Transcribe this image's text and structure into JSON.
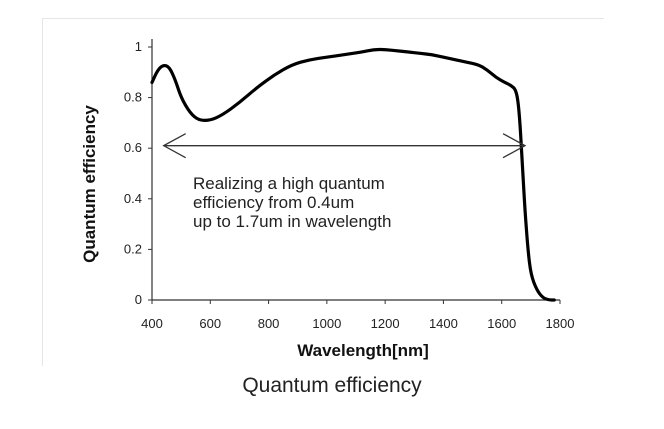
{
  "caption": "Quantum efficiency",
  "chart_data": {
    "type": "line",
    "xlabel": "Wavelength[nm]",
    "ylabel": "Quantum efficiency",
    "xlim": [
      400,
      1800
    ],
    "ylim": [
      0,
      1
    ],
    "xticks": [
      "400",
      "600",
      "800",
      "1000",
      "1200",
      "1400",
      "1600",
      "1800"
    ],
    "yticks": [
      "0",
      "0.2",
      "0.4",
      "0.6",
      "0.8",
      "1"
    ],
    "grid": false,
    "series": [
      {
        "color": "#000000",
        "x": [
          400,
          420,
          440,
          460,
          480,
          500,
          530,
          560,
          600,
          640,
          700,
          760,
          820,
          880,
          940,
          1000,
          1060,
          1120,
          1160,
          1200,
          1240,
          1280,
          1320,
          1360,
          1400,
          1440,
          1480,
          1520,
          1550,
          1580,
          1610,
          1630,
          1650,
          1660,
          1670,
          1680,
          1690,
          1700,
          1720,
          1740,
          1760,
          1780
        ],
        "y": [
          0.86,
          0.91,
          0.93,
          0.92,
          0.87,
          0.8,
          0.74,
          0.71,
          0.71,
          0.73,
          0.78,
          0.84,
          0.89,
          0.93,
          0.95,
          0.96,
          0.97,
          0.98,
          0.99,
          0.99,
          0.985,
          0.98,
          0.975,
          0.97,
          0.96,
          0.95,
          0.94,
          0.93,
          0.91,
          0.88,
          0.86,
          0.85,
          0.83,
          0.75,
          0.55,
          0.35,
          0.2,
          0.1,
          0.04,
          0.01,
          0.0,
          0.0
        ]
      }
    ],
    "annotation": {
      "lines": [
        "Realizing a high quantum",
        "efficiency from 0.4um",
        "up to 1.7um in wavelength"
      ],
      "arrow_y": 0.61
    }
  }
}
